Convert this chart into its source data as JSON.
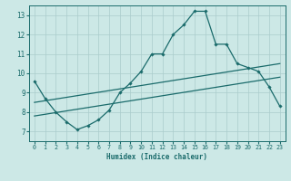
{
  "xlabel": "Humidex (Indice chaleur)",
  "ylabel": "",
  "xlim": [
    -0.5,
    23.5
  ],
  "ylim": [
    6.5,
    13.5
  ],
  "xticks": [
    0,
    1,
    2,
    3,
    4,
    5,
    6,
    7,
    8,
    9,
    10,
    11,
    12,
    13,
    14,
    15,
    16,
    17,
    18,
    19,
    20,
    21,
    22,
    23
  ],
  "yticks": [
    7,
    8,
    9,
    10,
    11,
    12,
    13
  ],
  "background_color": "#cce8e6",
  "grid_color": "#aacccc",
  "line_color": "#1a6b6b",
  "line1_x": [
    0,
    1,
    2,
    3,
    4,
    5,
    6,
    7,
    8,
    9,
    10,
    11,
    12,
    13,
    14,
    15,
    16,
    17,
    18,
    19,
    20,
    21,
    22,
    23
  ],
  "line1_y": [
    9.6,
    8.7,
    8.0,
    7.5,
    7.1,
    7.3,
    7.6,
    8.1,
    9.0,
    9.5,
    10.1,
    11.0,
    11.0,
    12.0,
    12.5,
    13.2,
    13.2,
    11.5,
    11.5,
    10.5,
    10.3,
    10.1,
    9.3,
    8.3
  ],
  "line2_x": [
    0,
    23
  ],
  "line2_y": [
    8.5,
    10.5
  ],
  "line3_x": [
    0,
    23
  ],
  "line3_y": [
    7.8,
    9.8
  ]
}
